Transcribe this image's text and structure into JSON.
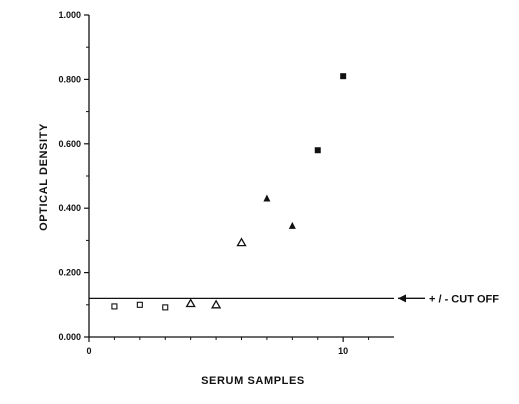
{
  "chart_data": {
    "type": "scatter",
    "xlabel": "SERUM SAMPLES",
    "ylabel": "OPTICAL DENSITY",
    "xlim": [
      0,
      12
    ],
    "ylim": [
      0,
      1.0
    ],
    "x_tick_values": [
      0,
      10
    ],
    "x_tick_labels": [
      "0",
      "10"
    ],
    "y_tick_values": [
      0,
      0.2,
      0.4,
      0.6,
      0.8,
      1.0
    ],
    "y_tick_labels": [
      "0.000",
      "0.200",
      "0.400",
      "0.600",
      "0.800",
      "1.000"
    ],
    "cutoff": {
      "value": 0.12,
      "label": "+ / - CUT OFF"
    },
    "series": [
      {
        "marker": "open-square",
        "points": [
          [
            1,
            0.095
          ],
          [
            2,
            0.1
          ],
          [
            3,
            0.092
          ]
        ]
      },
      {
        "marker": "open-triangle",
        "points": [
          [
            4,
            0.104
          ],
          [
            5,
            0.1
          ],
          [
            6,
            0.293
          ]
        ]
      },
      {
        "marker": "filled-triangle",
        "points": [
          [
            7,
            0.43
          ],
          [
            8,
            0.345
          ]
        ]
      },
      {
        "marker": "filled-square",
        "points": [
          [
            9,
            0.58
          ],
          [
            10,
            0.81
          ]
        ]
      }
    ],
    "grid": false,
    "color": "#111111"
  }
}
